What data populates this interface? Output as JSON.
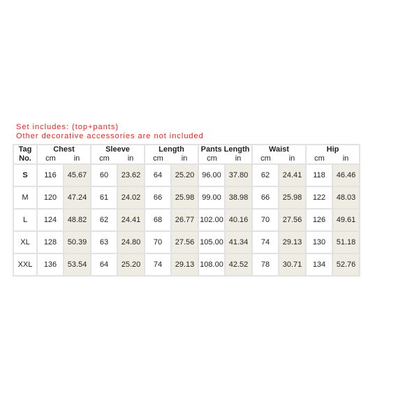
{
  "notes": [
    "Set includes: (top+pants)",
    "Other decorative accessories are not included"
  ],
  "table": {
    "tag_header": [
      "Tag",
      "No."
    ],
    "groups": [
      "Chest",
      "Sleeve",
      "Length",
      "Pants Length",
      "Waist",
      "Hip"
    ],
    "units": [
      "cm",
      "in"
    ],
    "rows": [
      {
        "size": "S",
        "values": [
          "116",
          "45.67",
          "60",
          "23.62",
          "64",
          "25.20",
          "96.00",
          "37.80",
          "62",
          "24.41",
          "118",
          "46.46"
        ]
      },
      {
        "size": "M",
        "values": [
          "120",
          "47.24",
          "61",
          "24.02",
          "66",
          "25.98",
          "99.00",
          "38.98",
          "66",
          "25.98",
          "122",
          "48.03"
        ]
      },
      {
        "size": "L",
        "values": [
          "124",
          "48.82",
          "62",
          "24.41",
          "68",
          "26.77",
          "102.00",
          "40.16",
          "70",
          "27.56",
          "126",
          "49.61"
        ]
      },
      {
        "size": "XL",
        "values": [
          "128",
          "50.39",
          "63",
          "24.80",
          "70",
          "27.56",
          "105.00",
          "41.34",
          "74",
          "29.13",
          "130",
          "51.18"
        ]
      },
      {
        "size": "XXL",
        "values": [
          "136",
          "53.54",
          "64",
          "25.20",
          "74",
          "29.13",
          "108.00",
          "42.52",
          "78",
          "30.71",
          "134",
          "52.76"
        ]
      }
    ],
    "shade_color": "#efede3"
  }
}
